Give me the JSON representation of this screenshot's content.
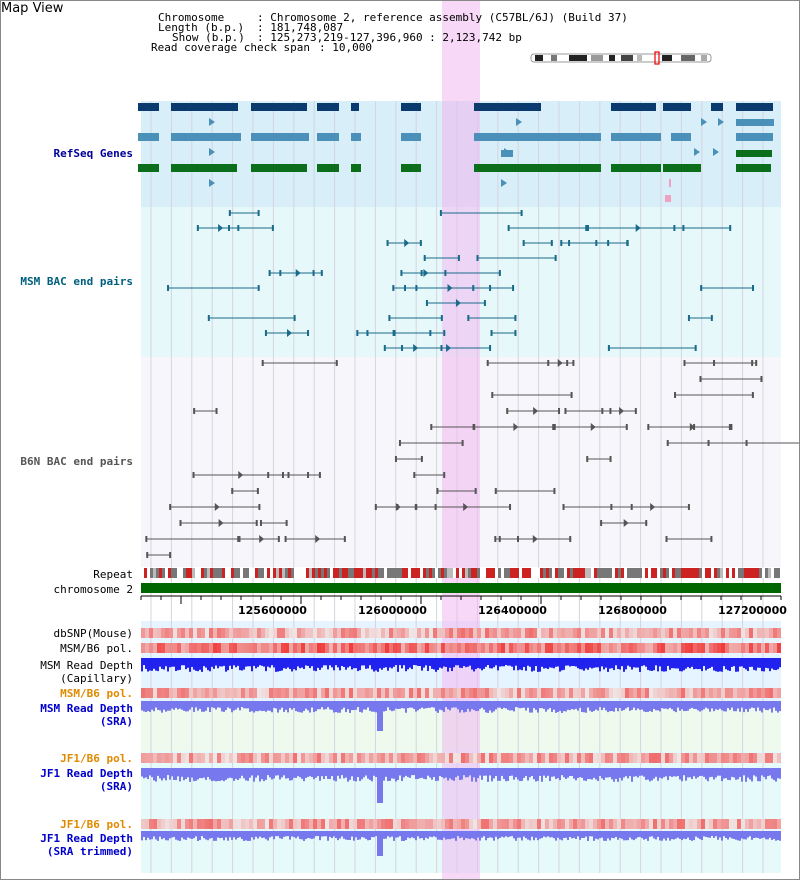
{
  "header": {
    "title": "Map View",
    "chromosome_key": "Chromosome",
    "chromosome_val": ": Chromosome 2, reference assembly (C57BL/6J) (Build 37)",
    "length_key": "Length (b.p.)",
    "length_val": ": 181,748,087",
    "show_key": "Show (b.p.)",
    "show_val": ": 125,273,219-127,396,960 : 2,123,742 bp",
    "coverage_key": "Read coverage check span",
    "coverage_val": ": 10,000"
  },
  "tracks": {
    "refseq": "RefSeq Genes",
    "msm_bac": "MSM BAC end pairs",
    "b6n_bac": "B6N BAC end pairs",
    "repeat": "Repeat",
    "chromosome": "chromosome 2",
    "dbsnp": "dbSNP(Mouse)",
    "msm_b6_pol_1": "MSM/B6 pol.",
    "msm_read_depth_cap_1": "MSM Read Depth",
    "msm_read_depth_cap_2": "(Capillary)",
    "msm_b6_pol_2": "MSM/B6 pol.",
    "msm_read_depth_sra_1": "MSM Read Depth",
    "msm_read_depth_sra_2": "(SRA)",
    "jf1_b6_pol_1": "JF1/B6 pol.",
    "jf1_read_depth_sra_1": "JF1 Read Depth",
    "jf1_read_depth_sra_2": "(SRA)",
    "jf1_b6_pol_2": "JF1/B6 pol.",
    "jf1_read_depth_trim_1": "JF1 Read Depth",
    "jf1_read_depth_trim_2": "(SRA trimmed)"
  },
  "axis": {
    "ticks": [
      "125600000",
      "126000000",
      "126400000",
      "126800000",
      "127200000"
    ]
  },
  "colors": {
    "refseq_dark": "#0a3a6e",
    "refseq_mid": "#4a90b8",
    "refseq_green": "#0a6e1a",
    "msm_bac": "#1a6a8a",
    "b6n_bac": "#555555",
    "chromosome": "#006600",
    "highlight": "#f0b8f0",
    "depth_blue": "#2222ee",
    "depth_light": "#7777ee",
    "pol_red": "#ee3333"
  }
}
